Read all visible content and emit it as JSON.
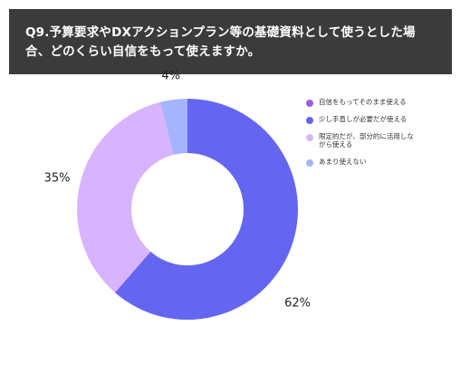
{
  "header": {
    "title": "Q9.予算要求やDXアクションプラン等の基礎資料として使うとした場合、どのくらい自信をもって使えますか。"
  },
  "chart_data": {
    "type": "pie",
    "donut": true,
    "categories": [
      "自信をもってそのまま使える",
      "少し手直しが必要だが使える",
      "限定的だが、部分的に活用しながら使える",
      "あまり使えない"
    ],
    "values": [
      0,
      62,
      35,
      4
    ],
    "data_labels": [
      "",
      "62%",
      "35%",
      "4%"
    ],
    "colors": [
      "#9b5de5",
      "#6466f1",
      "#d8b4fe",
      "#a5b4fc"
    ],
    "legend_position": "right"
  }
}
